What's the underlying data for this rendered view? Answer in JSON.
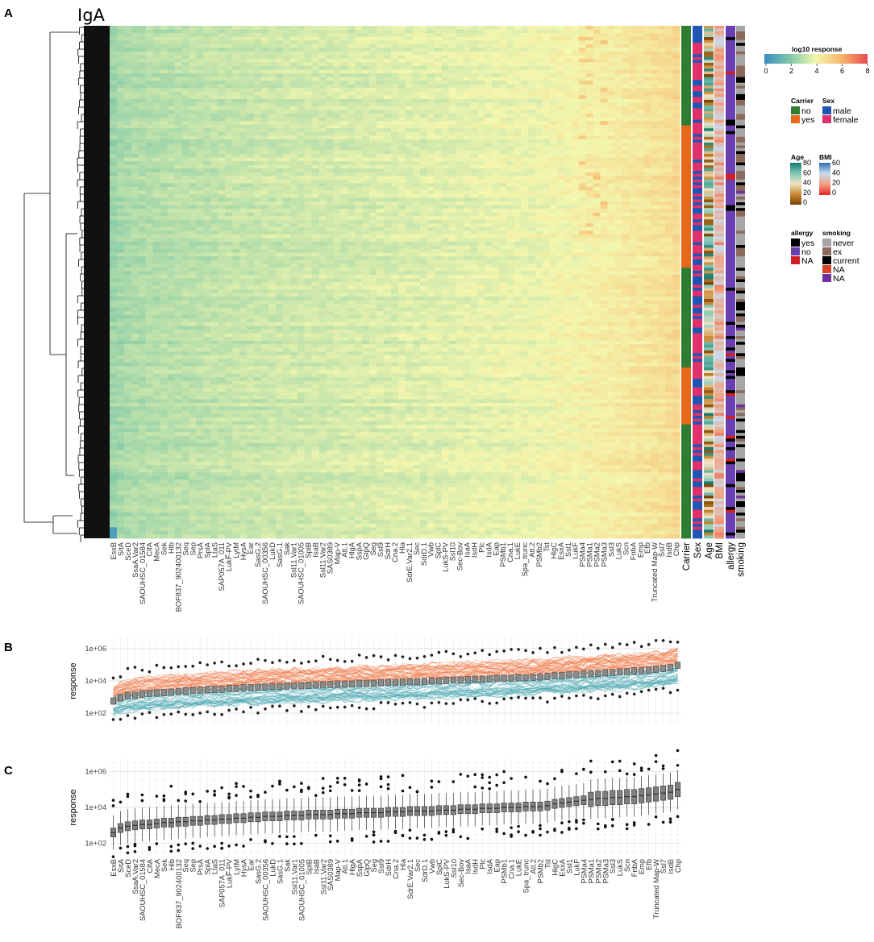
{
  "panels": {
    "A": "A",
    "B": "B",
    "C": "C"
  },
  "heatmap_title": "IgA",
  "annotation_columns": [
    "Carrier",
    "Sex",
    "Age",
    "BMI",
    "allergy",
    "smoking"
  ],
  "legend": {
    "response": {
      "title": "log10 response",
      "ticks": [
        "0",
        "2",
        "4",
        "6",
        "8"
      ],
      "colors": [
        "#3b8cc4",
        "#7fc8a8",
        "#f4f7ae",
        "#f7b56b",
        "#e94a4f"
      ]
    },
    "carrier": {
      "title": "Carrier",
      "items": [
        {
          "label": "no",
          "color": "#2e7d32"
        },
        {
          "label": "yes",
          "color": "#e8681a"
        }
      ]
    },
    "sex": {
      "title": "Sex",
      "items": [
        {
          "label": "male",
          "color": "#1f55b3"
        },
        {
          "label": "female",
          "color": "#e0316b"
        }
      ]
    },
    "age": {
      "title": "Age",
      "ticks": [
        "80",
        "60",
        "40",
        "20",
        "0"
      ],
      "colors": [
        "#147a6e",
        "#7fc6b6",
        "#efe3c3",
        "#c98b36",
        "#7a4208"
      ]
    },
    "bmi": {
      "title": "BMI",
      "ticks": [
        "60",
        "40",
        "20",
        "0"
      ],
      "colors": [
        "#2f6fb0",
        "#c8dcef",
        "#f2a07e",
        "#e3242b"
      ]
    },
    "allergy": {
      "title": "allergy",
      "items": [
        {
          "label": "yes",
          "color": "#000000"
        },
        {
          "label": "no",
          "color": "#6a3fb0"
        },
        {
          "label": "NA",
          "color": "#cf1f25"
        }
      ]
    },
    "smoking": {
      "title": "smoking",
      "items": [
        {
          "label": "never",
          "color": "#a6a6a6"
        },
        {
          "label": "ex",
          "color": "#8b6a5c"
        },
        {
          "label": "current",
          "color": "#000000"
        },
        {
          "label": "NA",
          "color": "#d4432a"
        },
        {
          "label": "NA",
          "color": "#7030a0"
        }
      ]
    }
  },
  "chart_data": [
    {
      "type": "heatmap",
      "title": "IgA",
      "columns": [
        "EsxB",
        "SitA",
        "SceD",
        "SsaA.Var2",
        "SAOUHSC_01584",
        "ClfA",
        "MecA",
        "Sek",
        "Hlb",
        "BOF837_902400132",
        "Seq",
        "Sep",
        "PrsA",
        "SplA",
        "LtaS",
        "SAP057A_011",
        "LukF-PV",
        "LytM",
        "HysA",
        "Ear",
        "SasG.2",
        "SAOUHSC_00356",
        "LukD",
        "SasG.1",
        "Sak",
        "Ssl11.Var1",
        "SAOUHSC_01005",
        "SplB",
        "IsaB",
        "Ssl11.Var2",
        "SAS0389",
        "Map-V",
        "Atl.1",
        "HlgA",
        "SspA",
        "GlpQ",
        "Seg",
        "Ssl9",
        "SdrH",
        "Cna.2",
        "Hla",
        "SdrE.Var2.1",
        "Sec",
        "SdrD.1",
        "Vwb",
        "SplC",
        "LukS-PV",
        "Ssl10",
        "Sec-Bov",
        "IsaA",
        "IsdH",
        "Plc",
        "IsdA",
        "Eap",
        "PSMb1",
        "Cna.1",
        "LukE",
        "Spa_trunc",
        "Atl.2",
        "PSMb2",
        "Tst",
        "HlgC",
        "EsxA",
        "Ssl1",
        "LukF",
        "PSMa4",
        "PSMa1",
        "PSMa2",
        "PSMa3",
        "Ssl3",
        "LukS",
        "Scn",
        "FnbA",
        "Emp",
        "Efb",
        "Truncated Map-W",
        "Ssl7",
        "IsdB",
        "Chp"
      ],
      "value_name": "log10 response",
      "color_range": [
        0,
        8
      ],
      "column_median_log10": [
        2.5,
        2.65,
        2.75,
        2.8,
        2.85,
        2.9,
        2.9,
        2.95,
        2.95,
        3.0,
        3.0,
        3.05,
        3.05,
        3.1,
        3.1,
        3.15,
        3.15,
        3.2,
        3.2,
        3.25,
        3.25,
        3.3,
        3.3,
        3.3,
        3.35,
        3.35,
        3.35,
        3.4,
        3.4,
        3.4,
        3.4,
        3.45,
        3.45,
        3.45,
        3.5,
        3.5,
        3.5,
        3.55,
        3.55,
        3.55,
        3.6,
        3.6,
        3.6,
        3.6,
        3.65,
        3.65,
        3.65,
        3.7,
        3.7,
        3.7,
        3.75,
        3.75,
        3.75,
        3.8,
        3.8,
        3.8,
        3.85,
        3.85,
        3.85,
        3.9,
        3.95,
        4.0,
        4.05,
        4.05,
        4.1,
        4.15,
        4.2,
        4.25,
        4.3,
        4.3,
        4.35,
        4.4,
        4.45,
        4.5,
        4.55,
        4.6,
        4.65,
        4.75,
        4.9
      ]
    },
    {
      "type": "line",
      "ylabel": "response",
      "y_scale": "log10",
      "ylim": [
        100,
        1000000
      ],
      "y_ticks": [
        "1e+02",
        "1e+04",
        "1e+06"
      ],
      "series": [
        {
          "color": "#f07b4b",
          "median": [
            3.1,
            3.35,
            3.5,
            3.55,
            3.6,
            3.65,
            3.7,
            3.7,
            3.75,
            3.8,
            3.85,
            3.85,
            3.9,
            3.9,
            3.95,
            3.95,
            4.0,
            4.0,
            4.05,
            4.05,
            4.1,
            4.1,
            4.15,
            4.15,
            4.15,
            4.2,
            4.2,
            4.2,
            4.25,
            4.25,
            4.25,
            4.3,
            4.3,
            4.3,
            4.35,
            4.35,
            4.35,
            4.4,
            4.4,
            4.4,
            4.45,
            4.45,
            4.45,
            4.5,
            4.5,
            4.5,
            4.55,
            4.55,
            4.55,
            4.6,
            4.6,
            4.6,
            4.65,
            4.65,
            4.65,
            4.7,
            4.7,
            4.7,
            4.75,
            4.75,
            4.8,
            4.85,
            4.85,
            4.9,
            4.9,
            4.95,
            5.0,
            5.0,
            5.05,
            5.05,
            5.1,
            5.1,
            5.15,
            5.15,
            5.2,
            5.25,
            5.3,
            5.35,
            5.5
          ]
        },
        {
          "color": "#4fa9b3",
          "median": [
            2.4,
            2.55,
            2.65,
            2.7,
            2.75,
            2.8,
            2.8,
            2.85,
            2.85,
            2.9,
            2.9,
            2.95,
            2.95,
            3.0,
            3.0,
            3.0,
            3.05,
            3.05,
            3.1,
            3.1,
            3.1,
            3.15,
            3.15,
            3.15,
            3.2,
            3.2,
            3.2,
            3.25,
            3.25,
            3.25,
            3.3,
            3.3,
            3.3,
            3.3,
            3.35,
            3.35,
            3.35,
            3.4,
            3.4,
            3.4,
            3.4,
            3.45,
            3.45,
            3.45,
            3.5,
            3.5,
            3.5,
            3.55,
            3.55,
            3.55,
            3.6,
            3.6,
            3.6,
            3.65,
            3.65,
            3.65,
            3.7,
            3.7,
            3.7,
            3.75,
            3.75,
            3.8,
            3.8,
            3.85,
            3.85,
            3.9,
            3.9,
            3.95,
            3.95,
            4.0,
            4.0,
            4.05,
            4.1,
            4.1,
            4.15,
            4.2,
            4.25,
            4.3,
            4.45
          ]
        }
      ]
    },
    {
      "type": "box",
      "ylabel": "response",
      "y_scale": "log10",
      "ylim": [
        100,
        1000000
      ],
      "y_ticks": [
        "1e+02",
        "1e+04",
        "1e+06"
      ],
      "median_log10": [
        2.6,
        2.85,
        2.95,
        3.0,
        3.05,
        3.05,
        3.1,
        3.15,
        3.15,
        3.2,
        3.2,
        3.25,
        3.25,
        3.3,
        3.3,
        3.35,
        3.35,
        3.4,
        3.4,
        3.45,
        3.45,
        3.5,
        3.5,
        3.5,
        3.55,
        3.55,
        3.55,
        3.6,
        3.6,
        3.6,
        3.6,
        3.65,
        3.65,
        3.65,
        3.7,
        3.7,
        3.7,
        3.7,
        3.75,
        3.75,
        3.75,
        3.8,
        3.8,
        3.8,
        3.8,
        3.85,
        3.85,
        3.85,
        3.9,
        3.9,
        3.9,
        3.95,
        3.95,
        3.95,
        4.0,
        4.0,
        4.0,
        4.05,
        4.05,
        4.05,
        4.1,
        4.2,
        4.25,
        4.3,
        4.35,
        4.4,
        4.45,
        4.5,
        4.5,
        4.55,
        4.55,
        4.6,
        4.6,
        4.65,
        4.7,
        4.75,
        4.8,
        4.85,
        5.0
      ]
    }
  ]
}
